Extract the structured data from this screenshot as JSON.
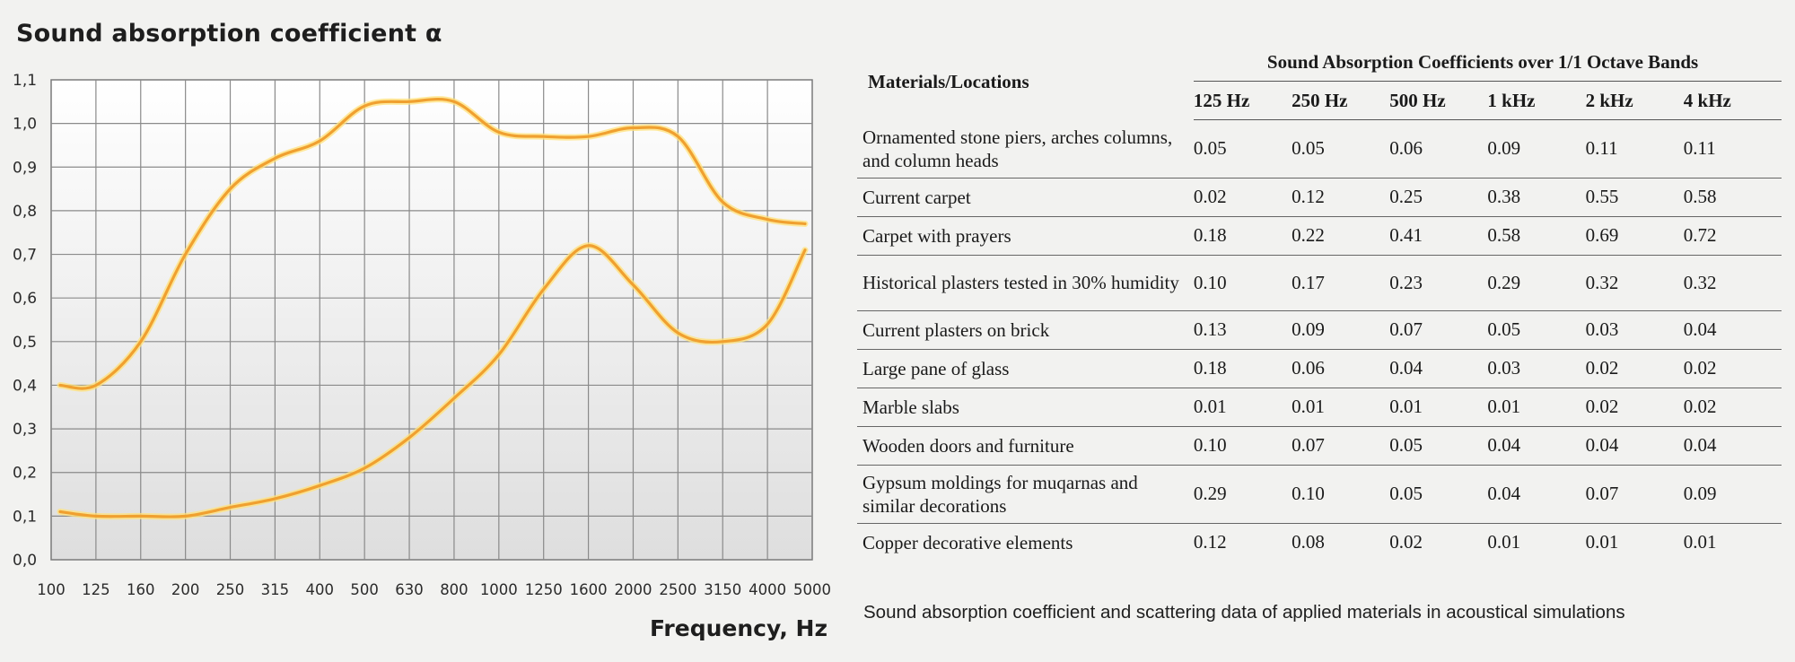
{
  "chart_data": {
    "type": "line",
    "title": "Sound absorption coefficient α",
    "xlabel": "Frequency, Hz",
    "ylabel": "",
    "x_scale": "log (1/3-octave bands)",
    "x": [
      "100",
      "125",
      "160",
      "200",
      "250",
      "315",
      "400",
      "500",
      "630",
      "800",
      "1000",
      "1250",
      "1600",
      "2000",
      "2500",
      "3150",
      "4000",
      "5000"
    ],
    "y_ticks": [
      "0,0",
      "0,1",
      "0,2",
      "0,3",
      "0,4",
      "0,5",
      "0,6",
      "0,7",
      "0,8",
      "0,9",
      "1,0",
      "1,1"
    ],
    "ylim": [
      0,
      1.1
    ],
    "grid": true,
    "legend": "none",
    "line_color": "#f0a030",
    "series": [
      {
        "values": [
          0.4,
          0.4,
          0.5,
          0.7,
          0.85,
          0.92,
          0.96,
          1.04,
          1.05,
          1.05,
          0.98,
          0.97,
          0.97,
          0.99,
          0.97,
          0.82,
          0.78,
          0.77
        ]
      },
      {
        "values": [
          0.11,
          0.1,
          0.1,
          0.1,
          0.12,
          0.14,
          0.17,
          0.21,
          0.28,
          0.37,
          0.47,
          0.62,
          0.72,
          0.63,
          0.52,
          0.5,
          0.54,
          0.71
        ]
      }
    ]
  },
  "table": {
    "group_header": "Sound Absorption Coefficients over 1/1 Octave Bands",
    "material_header": "Materials/Locations",
    "bands": [
      "125 Hz",
      "250 Hz",
      "500 Hz",
      "1 kHz",
      "2 kHz",
      "4 kHz"
    ],
    "rows": [
      {
        "material": "Ornamented stone piers, arches columns, and column heads",
        "values": [
          "0.05",
          "0.05",
          "0.06",
          "0.09",
          "0.11",
          "0.11"
        ]
      },
      {
        "material": "Current carpet",
        "values": [
          "0.02",
          "0.12",
          "0.25",
          "0.38",
          "0.55",
          "0.58"
        ]
      },
      {
        "material": "Carpet with prayers",
        "values": [
          "0.18",
          "0.22",
          "0.41",
          "0.58",
          "0.69",
          "0.72"
        ]
      },
      {
        "material": "Historical plasters tested in 30% humidity",
        "values": [
          "0.10",
          "0.17",
          "0.23",
          "0.29",
          "0.32",
          "0.32"
        ]
      },
      {
        "material": "Current plasters on brick",
        "values": [
          "0.13",
          "0.09",
          "0.07",
          "0.05",
          "0.03",
          "0.04"
        ]
      },
      {
        "material": "Large pane of glass",
        "values": [
          "0.18",
          "0.06",
          "0.04",
          "0.03",
          "0.02",
          "0.02"
        ]
      },
      {
        "material": "Marble slabs",
        "values": [
          "0.01",
          "0.01",
          "0.01",
          "0.01",
          "0.02",
          "0.02"
        ]
      },
      {
        "material": "Wooden doors and furniture",
        "values": [
          "0.10",
          "0.07",
          "0.05",
          "0.04",
          "0.04",
          "0.04"
        ]
      },
      {
        "material": "Gypsum moldings for muqarnas and similar decorations",
        "values": [
          "0.29",
          "0.10",
          "0.05",
          "0.04",
          "0.07",
          "0.09"
        ]
      },
      {
        "material": "Copper decorative elements",
        "values": [
          "0.12",
          "0.08",
          "0.02",
          "0.01",
          "0.01",
          "0.01"
        ]
      }
    ]
  },
  "caption": "Sound absorption coefficient and scattering data of applied materials in acoustical simulations"
}
